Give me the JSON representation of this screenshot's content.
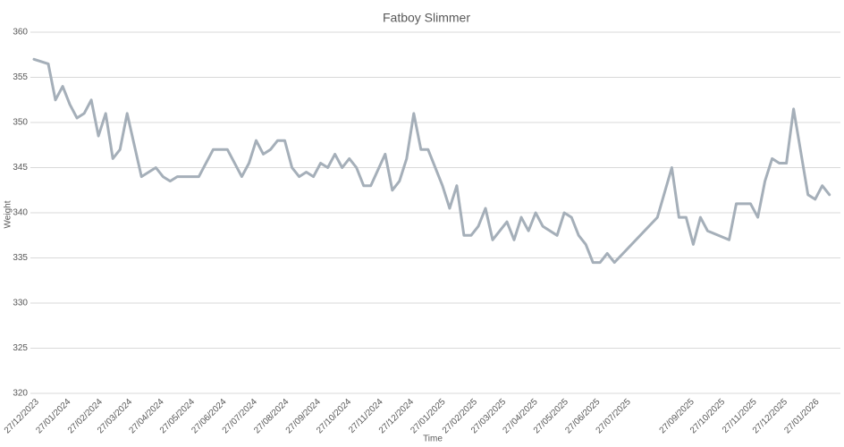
{
  "chart_data": {
    "type": "line",
    "title": "Fatboy Slimmer",
    "x_label": "Time",
    "y_label": "Weight",
    "x": [
      "27/12/2023",
      "10/01/2024",
      "17/01/2024",
      "24/01/2024",
      "31/01/2024",
      "07/02/2024",
      "14/02/2024",
      "21/02/2024",
      "28/02/2024",
      "06/03/2024",
      "13/03/2024",
      "20/03/2024",
      "27/03/2024",
      "10/04/2024",
      "24/04/2024",
      "01/05/2024",
      "08/05/2024",
      "15/05/2024",
      "05/06/2024",
      "19/06/2024",
      "03/07/2024",
      "17/07/2024",
      "24/07/2024",
      "31/07/2024",
      "07/08/2024",
      "14/08/2024",
      "21/08/2024",
      "28/08/2024",
      "04/09/2024",
      "11/09/2024",
      "18/09/2024",
      "25/09/2024",
      "02/10/2024",
      "09/10/2024",
      "16/10/2024",
      "23/10/2024",
      "30/10/2024",
      "06/11/2024",
      "13/11/2024",
      "20/11/2024",
      "04/12/2024",
      "11/12/2024",
      "18/12/2024",
      "25/12/2024",
      "01/01/2025",
      "08/01/2025",
      "15/01/2025",
      "29/01/2025",
      "05/02/2025",
      "12/02/2025",
      "19/02/2025",
      "26/02/2025",
      "05/03/2025",
      "12/03/2025",
      "19/03/2025",
      "02/04/2025",
      "09/04/2025",
      "16/04/2025",
      "23/04/2025",
      "30/04/2025",
      "07/05/2025",
      "21/05/2025",
      "28/05/2025",
      "04/06/2025",
      "11/06/2025",
      "18/06/2025",
      "25/06/2025",
      "02/07/2025",
      "09/07/2025",
      "16/07/2025",
      "27/08/2025",
      "10/09/2025",
      "17/09/2025",
      "24/09/2025",
      "01/10/2025",
      "08/10/2025",
      "15/10/2025",
      "05/11/2025",
      "12/11/2025",
      "26/11/2025",
      "03/12/2025",
      "10/12/2025",
      "17/12/2025",
      "24/12/2025",
      "31/12/2025",
      "07/01/2026",
      "21/01/2026",
      "28/01/2026",
      "04/02/2026",
      "11/02/2026"
    ],
    "values": [
      357,
      356.5,
      352.5,
      354,
      352,
      350.5,
      351,
      352.5,
      348.5,
      351,
      346,
      347,
      351,
      344,
      345,
      344,
      343.5,
      344,
      344,
      347,
      347,
      344,
      345.5,
      348,
      346.5,
      347,
      348,
      348,
      345,
      344,
      344.5,
      344,
      345.5,
      345,
      346.5,
      345,
      346,
      345,
      343,
      343,
      346.5,
      342.5,
      343.5,
      346,
      351,
      347,
      347,
      343,
      340.5,
      343,
      337.5,
      337.5,
      338.5,
      340.5,
      337,
      339,
      337,
      339.5,
      338,
      340,
      338.5,
      337.5,
      340,
      339.5,
      337.5,
      336.5,
      334.5,
      334.5,
      335.5,
      334.5,
      339.5,
      345,
      339.5,
      339.5,
      336.5,
      339.5,
      338,
      337,
      341,
      341,
      339.5,
      343.5,
      346,
      345.5,
      345.5,
      351.5,
      342,
      341.5,
      343,
      342
    ],
    "color": "#a5afb9",
    "xlim": [
      "27/12/2023",
      "13/02/2026"
    ],
    "xticks": [
      "27/12/2023",
      "27/01/2024",
      "27/02/2024",
      "27/03/2024",
      "27/04/2024",
      "27/05/2024",
      "27/06/2024",
      "27/07/2024",
      "27/08/2024",
      "27/09/2024",
      "27/10/2024",
      "27/11/2024",
      "27/12/2024",
      "27/01/2025",
      "27/02/2025",
      "27/03/2025",
      "27/04/2025",
      "27/05/2025",
      "27/06/2025",
      "27/07/2025",
      "27/09/2025",
      "27/10/2025",
      "27/11/2025",
      "27/12/2025",
      "27/01/2026"
    ],
    "ylim": [
      320,
      360
    ],
    "yticks": [
      320,
      325,
      330,
      335,
      340,
      345,
      350,
      355,
      360
    ],
    "grid": true
  }
}
